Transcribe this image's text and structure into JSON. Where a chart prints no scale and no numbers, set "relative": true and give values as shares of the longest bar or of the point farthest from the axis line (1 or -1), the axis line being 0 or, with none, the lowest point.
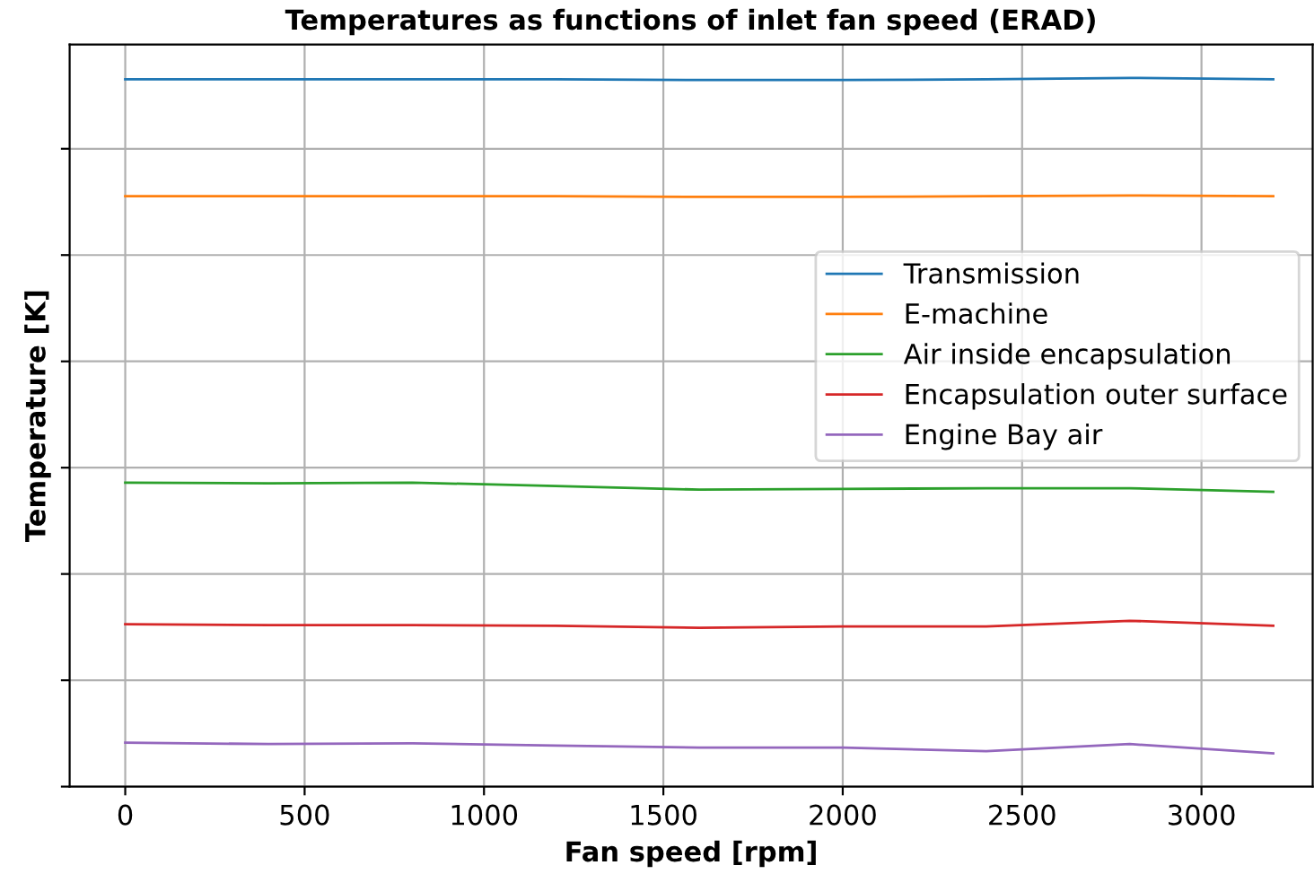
{
  "chart_data": {
    "type": "line",
    "title": "Temperatures as functions of inlet fan speed (ERAD)",
    "xlabel": "Fan speed [rpm]",
    "ylabel": "Temperature [K]",
    "relative": true,
    "x": [
      0,
      400,
      800,
      1200,
      1600,
      2000,
      2400,
      2800,
      3200
    ],
    "xlim": [
      -155,
      3310
    ],
    "xticks": [
      0,
      500,
      1000,
      1500,
      2000,
      2500,
      3000
    ],
    "series": [
      {
        "name": "Transmission",
        "color": "#1f77b4",
        "values": [
          0.998,
          0.998,
          0.998,
          0.998,
          0.997,
          0.997,
          0.998,
          1.0,
          0.998
        ]
      },
      {
        "name": "E-machine",
        "color": "#ff7f0e",
        "values": [
          0.833,
          0.833,
          0.833,
          0.833,
          0.832,
          0.832,
          0.833,
          0.834,
          0.833
        ]
      },
      {
        "name": "Air inside encapsulation",
        "color": "#2ca02c",
        "values": [
          0.429,
          0.428,
          0.429,
          0.424,
          0.419,
          0.42,
          0.421,
          0.421,
          0.416
        ]
      },
      {
        "name": "Encapsulation outer surface",
        "color": "#d62728",
        "values": [
          0.229,
          0.228,
          0.228,
          0.227,
          0.224,
          0.226,
          0.226,
          0.234,
          0.227
        ]
      },
      {
        "name": "Engine Bay air",
        "color": "#9467bd",
        "values": [
          0.062,
          0.06,
          0.061,
          0.058,
          0.055,
          0.055,
          0.05,
          0.06,
          0.047
        ]
      }
    ],
    "grid": true,
    "legend": "center right",
    "tick_labels": "x",
    "line_style": "solid",
    "marker": "none"
  }
}
